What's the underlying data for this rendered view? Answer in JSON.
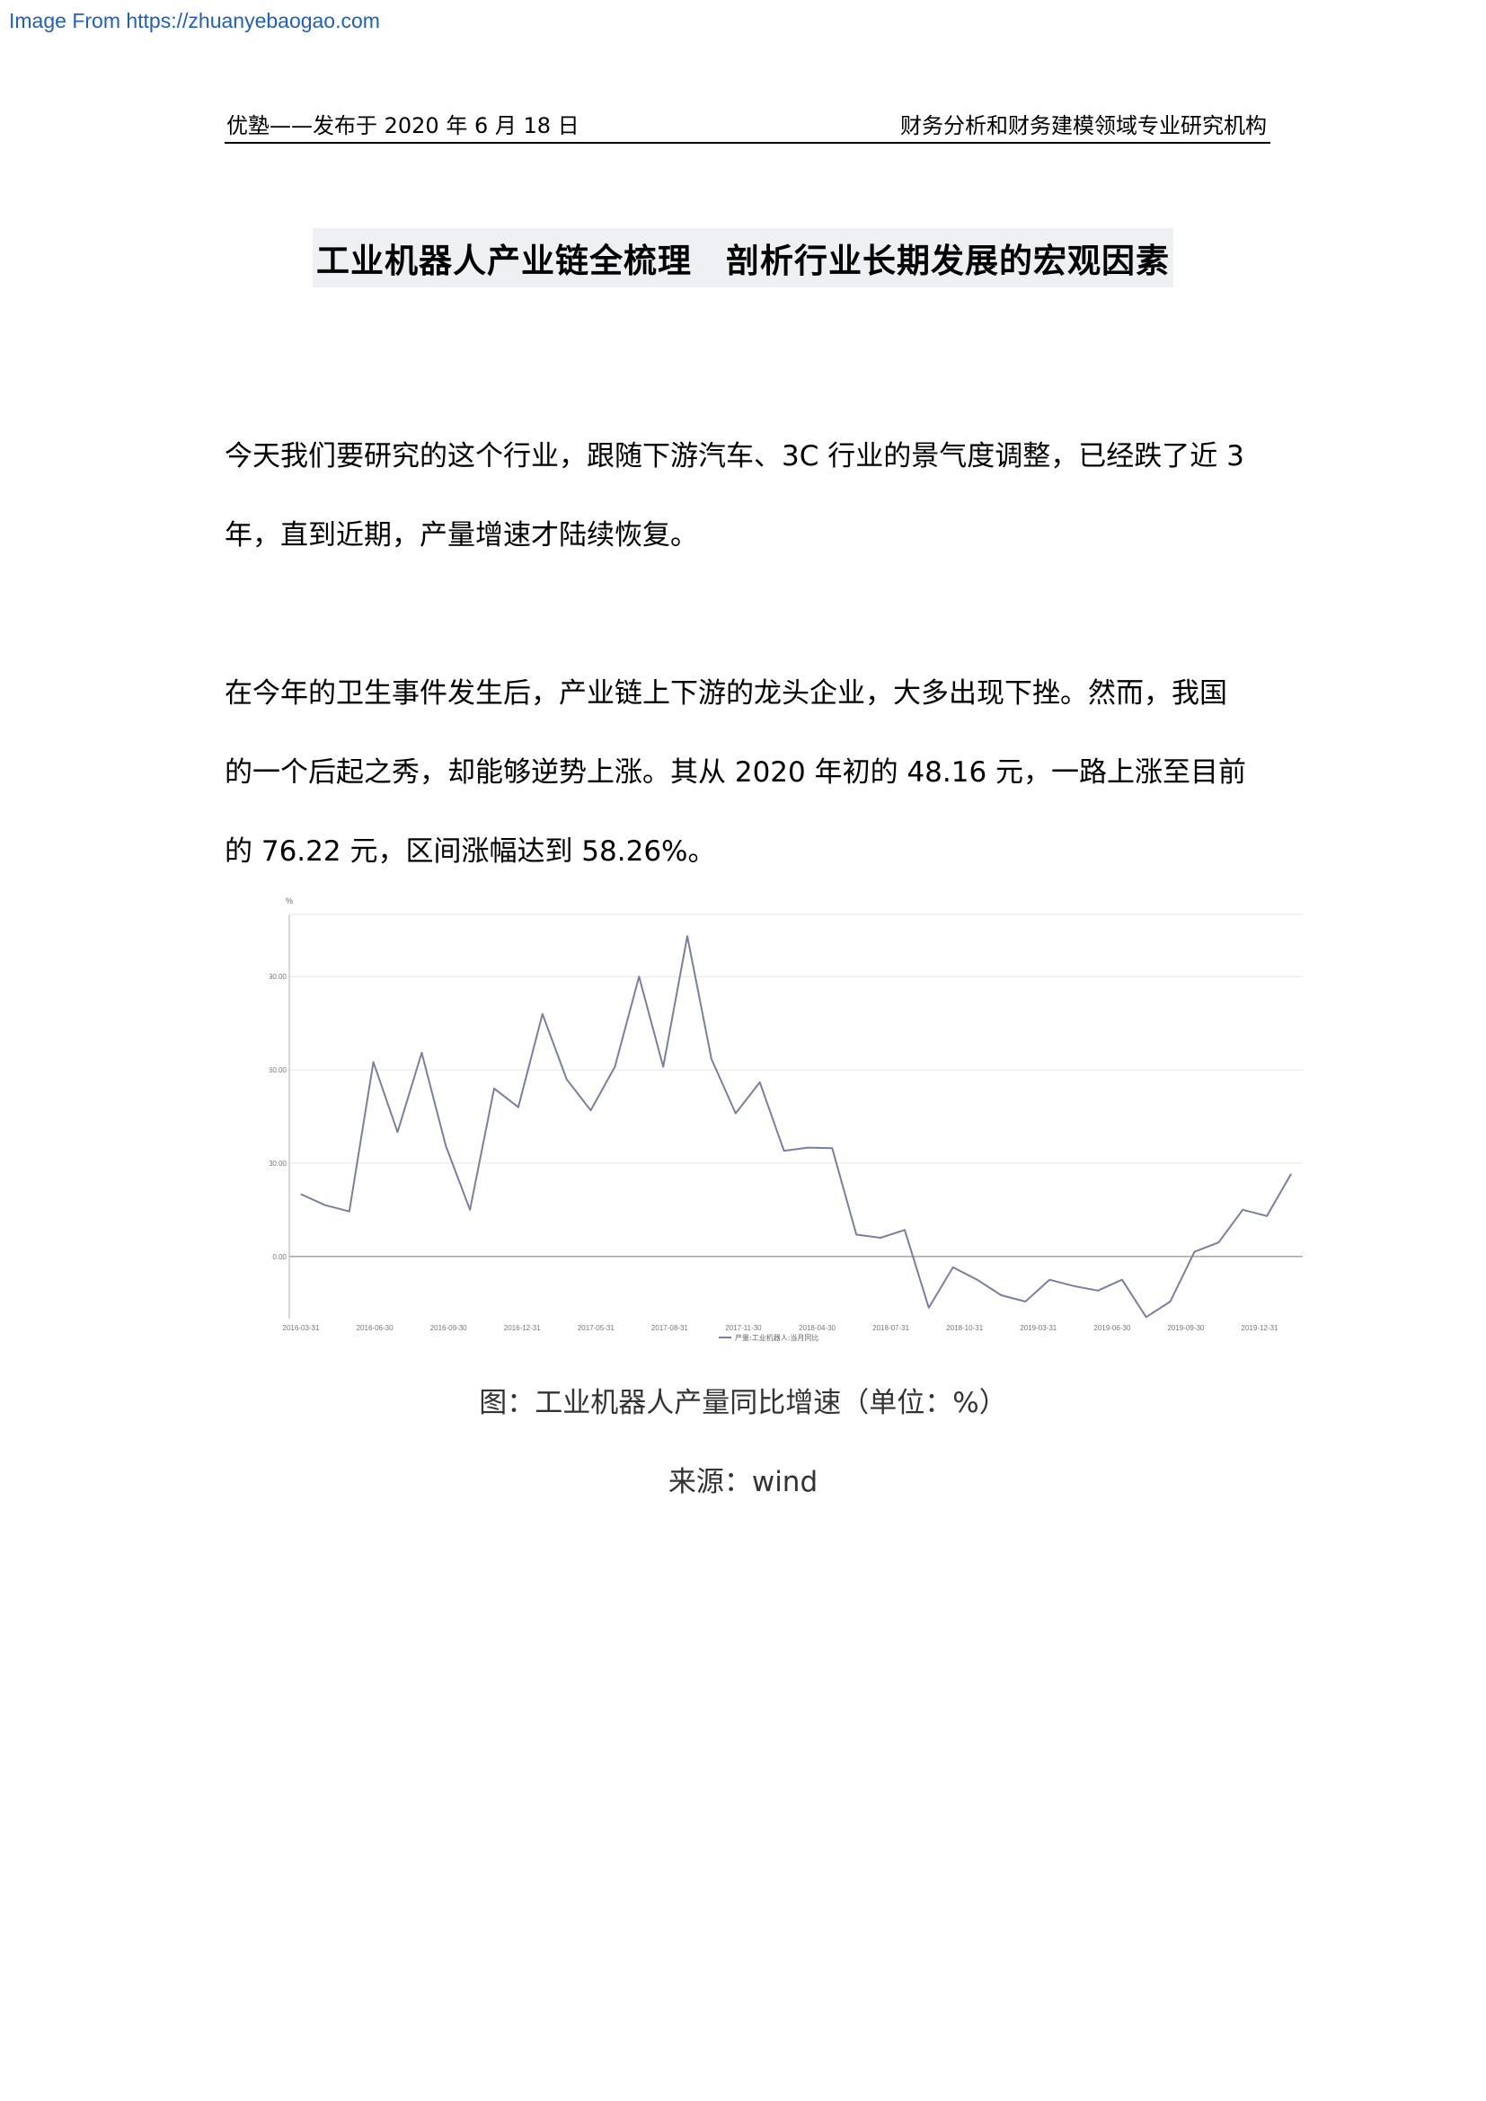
{
  "source_link": "Image From https://zhuanyebaogao.com",
  "header": {
    "left": "优塾——发布于 2020 年 6 月 18 日",
    "right": "财务分析和财务建模领域专业研究机构"
  },
  "title": "工业机器人产业链全梳理　剖析行业长期发展的宏观因素",
  "paragraphs": [
    "今天我们要研究的这个行业，跟随下游汽车、3C 行业的景气度调整，已经跌了近 3 年，直到近期，产量增速才陆续恢复。",
    "在今年的卫生事件发生后，产业链上下游的龙头企业，大多出现下挫。然而，我国的一个后起之秀，却能够逆势上涨。其从 2020 年初的 48.16 元，一路上涨至目前的 76.22 元，区间涨幅达到 58.26%。"
  ],
  "chart_data": {
    "type": "line",
    "ylabel": "%",
    "ylim": [
      -20,
      110
    ],
    "yticks": [
      "0.00",
      "30.00",
      "60.00",
      "90.00"
    ],
    "ytick_values": [
      0,
      30,
      60,
      90
    ],
    "xtick_labels": [
      "2016-03-31",
      "2016-06-30",
      "2016-09-30",
      "2016-12-31",
      "2017-05-31",
      "2017-08-31",
      "2017-11-30",
      "2018-04-30",
      "2018-07-31",
      "2018-10-31",
      "2019-03-31",
      "2019-06-30",
      "2019-09-30",
      "2019-12-31"
    ],
    "grid": true,
    "legend_position": "bottom-center",
    "line_color": "#7b7f9e",
    "series": [
      {
        "name": "产量:工业机器人:当月同比",
        "values": [
          20,
          16.5,
          14.5,
          62.5,
          40,
          65.5,
          35.5,
          15,
          54,
          48,
          78,
          57,
          47,
          61,
          90,
          61,
          103,
          63.5,
          46,
          56,
          34,
          35,
          34.8,
          7,
          6,
          8.5,
          -16.5,
          -3.5,
          -7.5,
          -12.5,
          -14.5,
          -7.5,
          -9.5,
          -11,
          -7.5,
          -19.5,
          -14.5,
          1.5,
          4.5,
          15,
          13,
          26.5
        ]
      }
    ]
  },
  "captions": [
    "图：工业机器人产量同比增速（单位：%）",
    "来源：wind"
  ]
}
